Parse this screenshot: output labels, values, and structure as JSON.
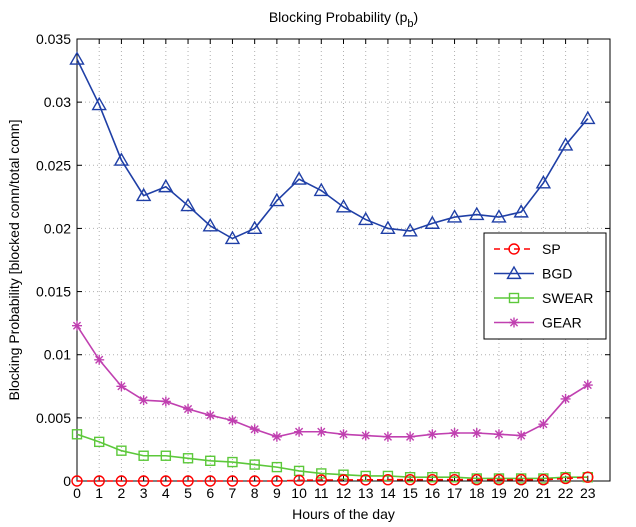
{
  "chart_data": {
    "type": "line",
    "title": "Blocking Probability (p",
    "title_subscript": "b",
    "title_suffix": ")",
    "xlabel": "Hours of the day",
    "ylabel": "Blocking Probability [blocked conn/total conn]",
    "x": [
      0,
      1,
      2,
      3,
      4,
      5,
      6,
      7,
      8,
      9,
      10,
      11,
      12,
      13,
      14,
      15,
      16,
      17,
      18,
      19,
      20,
      21,
      22,
      23
    ],
    "xlim": [
      0,
      24
    ],
    "ylim": [
      0,
      0.035
    ],
    "yticks": [
      "0",
      "0.005",
      "0.01",
      "0.015",
      "0.02",
      "0.025",
      "0.03",
      "0.035"
    ],
    "grid": true,
    "legend_position": "right",
    "series": [
      {
        "name": "SP",
        "color": "#ff0000",
        "marker": "circle",
        "dash": true,
        "values": [
          0,
          0,
          0,
          0,
          0,
          0,
          0,
          0,
          0,
          0,
          5e-05,
          8e-05,
          8e-05,
          9e-05,
          0.0001,
          0.0001,
          0.0001,
          0.0001,
          0.0001,
          0.0001,
          0.0001,
          0.0001,
          0.0002,
          0.0003
        ]
      },
      {
        "name": "BGD",
        "color": "#1f3fa6",
        "marker": "triangle",
        "dash": false,
        "values": [
          0.0334,
          0.0298,
          0.0254,
          0.0226,
          0.0233,
          0.0218,
          0.0202,
          0.0192,
          0.02,
          0.0222,
          0.0239,
          0.023,
          0.0217,
          0.0207,
          0.02,
          0.0198,
          0.0204,
          0.0209,
          0.0211,
          0.0209,
          0.0213,
          0.0236,
          0.0266,
          0.0287
        ]
      },
      {
        "name": "SWEAR",
        "color": "#5cc83a",
        "marker": "square",
        "dash": false,
        "values": [
          0.0037,
          0.0031,
          0.0024,
          0.002,
          0.002,
          0.0018,
          0.0016,
          0.0015,
          0.0013,
          0.0011,
          0.0008,
          0.0006,
          0.0005,
          0.0004,
          0.0004,
          0.0003,
          0.0003,
          0.0003,
          0.0002,
          0.0002,
          0.0002,
          0.0002,
          0.0003,
          0.0003
        ]
      },
      {
        "name": "GEAR",
        "color": "#c040b0",
        "marker": "star",
        "dash": false,
        "values": [
          0.0123,
          0.0096,
          0.0075,
          0.0064,
          0.0063,
          0.0057,
          0.0052,
          0.0048,
          0.0041,
          0.0035,
          0.0039,
          0.0039,
          0.0037,
          0.0036,
          0.0035,
          0.0035,
          0.0037,
          0.0038,
          0.0038,
          0.0037,
          0.0036,
          0.0045,
          0.0065,
          0.0076
        ]
      }
    ]
  }
}
